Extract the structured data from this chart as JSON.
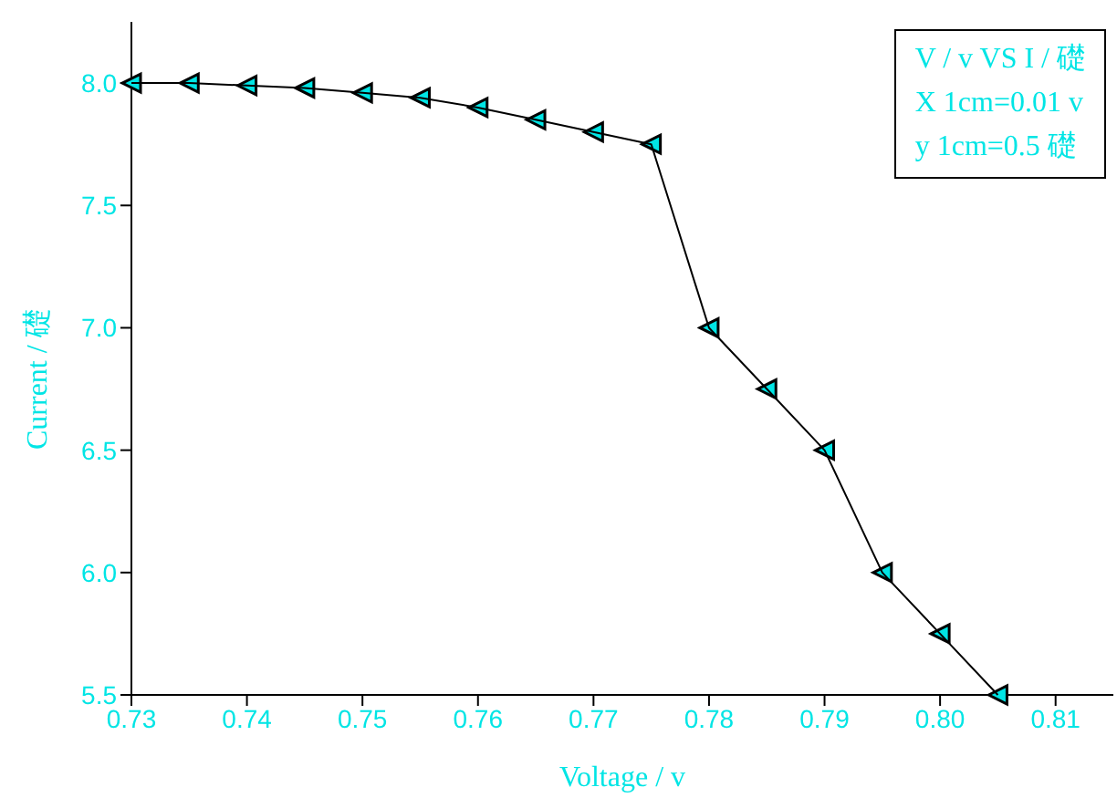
{
  "chart_data": {
    "type": "line",
    "xlabel": "Voltage / v",
    "ylabel": "Current / 礎",
    "x": [
      0.73,
      0.735,
      0.74,
      0.745,
      0.75,
      0.755,
      0.76,
      0.765,
      0.77,
      0.775,
      0.78,
      0.785,
      0.79,
      0.795,
      0.8,
      0.805
    ],
    "series": [
      {
        "color": "#000000",
        "values": [
          8.0,
          8.0,
          7.99,
          7.98,
          7.96,
          7.94,
          7.9,
          7.85,
          7.8,
          7.75,
          7.0,
          6.75,
          6.5,
          6.0,
          5.75,
          5.5
        ]
      }
    ],
    "xlim": [
      0.73,
      0.815
    ],
    "xticks": [
      {
        "value": 0.73,
        "label": "0.73"
      },
      {
        "value": 0.74,
        "label": "0.74"
      },
      {
        "value": 0.75,
        "label": "0.75"
      },
      {
        "value": 0.76,
        "label": "0.76"
      },
      {
        "value": 0.77,
        "label": "0.77"
      },
      {
        "value": 0.78,
        "label": "0.78"
      },
      {
        "value": 0.79,
        "label": "0.79"
      },
      {
        "value": 0.8,
        "label": "0.80"
      },
      {
        "value": 0.81,
        "label": "0.81"
      }
    ],
    "ylim": [
      5.5,
      8.25
    ],
    "yticks": [
      {
        "value": 5.5,
        "label": "5.5"
      },
      {
        "value": 6,
        "label": "6.0"
      },
      {
        "value": 6.5,
        "label": "6.5"
      },
      {
        "value": 7,
        "label": "7.0"
      },
      {
        "value": 7.5,
        "label": "7.5"
      },
      {
        "value": 8,
        "label": "8.0"
      }
    ],
    "marker": "triangle",
    "line_style": "solid",
    "grid": false,
    "legend": false,
    "annotations": [
      "V / v VS I / 礎",
      "X 1cm=0.01 v",
      "y 1cm=0.5 礎"
    ]
  }
}
